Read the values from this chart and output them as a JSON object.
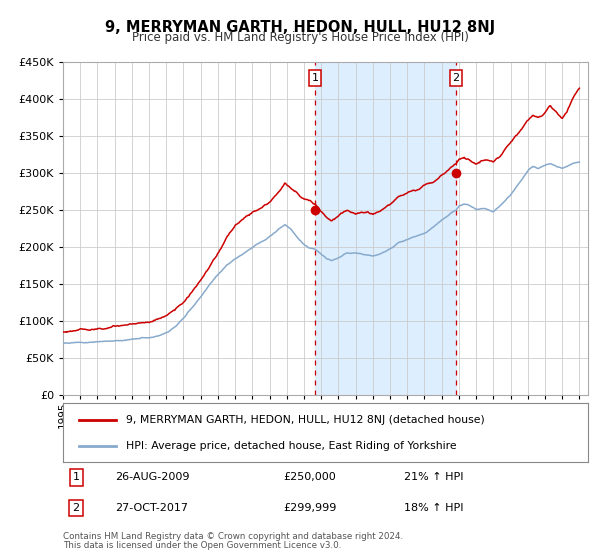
{
  "title": "9, MERRYMAN GARTH, HEDON, HULL, HU12 8NJ",
  "subtitle": "Price paid vs. HM Land Registry's House Price Index (HPI)",
  "xlim": [
    1995.0,
    2025.5
  ],
  "ylim": [
    0,
    450000
  ],
  "yticks": [
    0,
    50000,
    100000,
    150000,
    200000,
    250000,
    300000,
    350000,
    400000,
    450000
  ],
  "xticks": [
    1995,
    1996,
    1997,
    1998,
    1999,
    2000,
    2001,
    2002,
    2003,
    2004,
    2005,
    2006,
    2007,
    2008,
    2009,
    2010,
    2011,
    2012,
    2013,
    2014,
    2015,
    2016,
    2017,
    2018,
    2019,
    2020,
    2021,
    2022,
    2023,
    2024,
    2025
  ],
  "red_line_color": "#cc0000",
  "blue_line_color": "#88aacc",
  "grid_color": "#cccccc",
  "background_color": "#ffffff",
  "shaded_region_color": "#ddeeff",
  "sale1_x": 2009.65,
  "sale1_y": 250000,
  "sale1_label": "1",
  "sale1_date": "26-AUG-2009",
  "sale1_price": "£250,000",
  "sale1_hpi": "21% ↑ HPI",
  "sale2_x": 2017.83,
  "sale2_y": 299999,
  "sale2_label": "2",
  "sale2_date": "27-OCT-2017",
  "sale2_price": "£299,999",
  "sale2_hpi": "18% ↑ HPI",
  "legend_line1": "9, MERRYMAN GARTH, HEDON, HULL, HU12 8NJ (detached house)",
  "legend_line2": "HPI: Average price, detached house, East Riding of Yorkshire",
  "footer1": "Contains HM Land Registry data © Crown copyright and database right 2024.",
  "footer2": "This data is licensed under the Open Government Licence v3.0."
}
